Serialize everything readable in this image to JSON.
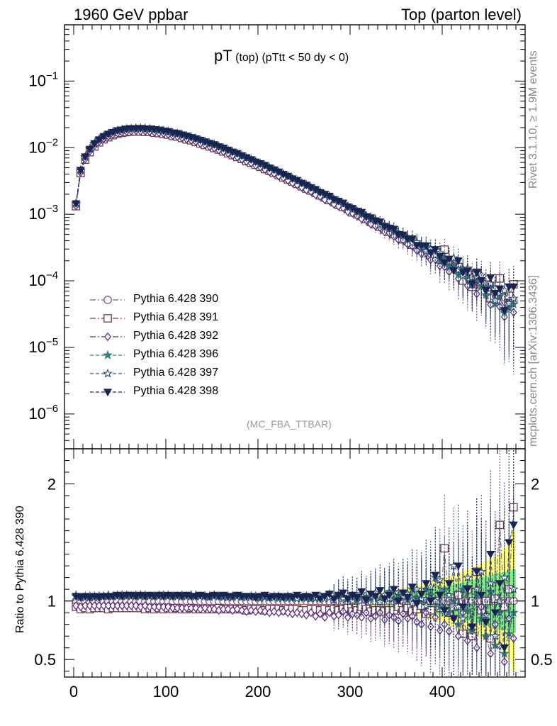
{
  "header": {
    "left": "1960 GeV ppbar",
    "right": "Top (parton level)"
  },
  "sidebar": {
    "rivet": "Rivet 3.1.10, ≥ 1.9M events",
    "mcplots": "mcplots.cern.ch [arXiv:1306.3436]"
  },
  "title": {
    "main": "pT",
    "sub": " (top)  (pTtt < 50 dy < 0)"
  },
  "analysis_tag": "(MC_FBA_TTBAR)",
  "ratio_ylabel": "Ratio to Pythia 6.428 390",
  "colors": {
    "s390": "#8b5a83",
    "s391": "#6e3b4e",
    "s392": "#5e2f86",
    "s396": "#3f7a7a",
    "s397": "#2f4f73",
    "s398": "#1a2450",
    "band_yellow": "#ffff80",
    "band_green": "#80f080"
  },
  "chart_data": {
    "type": "scatter",
    "xlabel": "",
    "ylabel": "",
    "xlim": [
      -10,
      490
    ],
    "ylim_main": [
      3e-07,
      0.7
    ],
    "yscale_main": "log",
    "ylim_ratio": [
      0.35,
      2.3
    ],
    "x_ticks": [
      "0",
      "100",
      "200",
      "300",
      "400"
    ],
    "y_ticks_main": [
      {
        "base": "10",
        "exp": "−1",
        "value": 0.1
      },
      {
        "base": "10",
        "exp": "−2",
        "value": 0.01
      },
      {
        "base": "10",
        "exp": "−3",
        "value": 0.001
      },
      {
        "base": "10",
        "exp": "−4",
        "value": 0.0001
      },
      {
        "base": "10",
        "exp": "−5",
        "value": 1e-05
      },
      {
        "base": "10",
        "exp": "−6",
        "value": 1e-06
      }
    ],
    "y_ticks_ratio": [
      "0.5",
      "1",
      "2"
    ],
    "x": [
      2.5,
      7.5,
      12.5,
      17.5,
      22.5,
      27.5,
      32.5,
      37.5,
      42.5,
      47.5,
      52.5,
      57.5,
      62.5,
      67.5,
      72.5,
      77.5,
      82.5,
      87.5,
      92.5,
      97.5,
      102.5,
      107.5,
      112.5,
      117.5,
      122.5,
      127.5,
      132.5,
      137.5,
      142.5,
      147.5,
      152.5,
      157.5,
      162.5,
      167.5,
      172.5,
      177.5,
      182.5,
      187.5,
      192.5,
      197.5,
      202.5,
      207.5,
      212.5,
      217.5,
      222.5,
      227.5,
      232.5,
      237.5,
      242.5,
      247.5,
      252.5,
      257.5,
      262.5,
      267.5,
      272.5,
      277.5,
      282.5,
      287.5,
      292.5,
      297.5,
      302.5,
      307.5,
      312.5,
      317.5,
      322.5,
      327.5,
      332.5,
      337.5,
      342.5,
      347.5,
      352.5,
      357.5,
      362.5,
      367.5,
      372.5,
      377.5,
      382.5,
      387.5,
      392.5,
      397.5,
      402.5,
      407.5,
      412.5,
      417.5,
      422.5,
      427.5,
      432.5,
      437.5,
      442.5,
      447.5,
      452.5,
      457.5,
      462.5,
      467.5,
      472.5,
      477.5
    ],
    "reference_series": "Pythia 6.428 390",
    "reference_values": [
      0.00139,
      0.00446,
      0.00703,
      0.00921,
      0.0111,
      0.0128,
      0.0142,
      0.0154,
      0.0164,
      0.0172,
      0.0178,
      0.0182,
      0.0185,
      0.0186,
      0.0186,
      0.0185,
      0.0183,
      0.018,
      0.0176,
      0.0172,
      0.0167,
      0.0161,
      0.0156,
      0.015,
      0.0143,
      0.0137,
      0.0131,
      0.0124,
      0.0118,
      0.0112,
      0.0106,
      0.00998,
      0.0094,
      0.00884,
      0.0083,
      0.00779,
      0.00729,
      0.00682,
      0.00638,
      0.00595,
      0.00555,
      0.00518,
      0.00482,
      0.00448,
      0.00416,
      0.00387,
      0.00359,
      0.00332,
      0.00308,
      0.00285,
      0.00264,
      0.00244,
      0.00225,
      0.00208,
      0.00192,
      0.00177,
      0.00163,
      0.0015,
      0.00138,
      0.00127,
      0.00117,
      0.00108,
      0.000991,
      0.000911,
      0.000837,
      0.000768,
      0.000705,
      0.000647,
      0.000593,
      0.000543,
      0.000498,
      0.000456,
      0.000417,
      0.000382,
      0.000349,
      0.000319,
      0.000292,
      0.000266,
      0.000243,
      0.000222,
      0.000203,
      0.000185,
      0.000169,
      0.000154,
      0.00014,
      0.000128,
      0.000116,
      0.000106,
      9.64e-05,
      8.77e-05,
      7.97e-05,
      7.24e-05,
      6.58e-05,
      5.98e-05,
      5.43e-05,
      4.93e-05
    ],
    "band_rel_error_green": [
      0.02,
      0.02,
      0.02,
      0.02,
      0.02,
      0.02,
      0.02,
      0.02,
      0.02,
      0.02,
      0.02,
      0.02,
      0.02,
      0.02,
      0.02,
      0.02,
      0.02,
      0.02,
      0.02,
      0.02,
      0.02,
      0.02,
      0.02,
      0.02,
      0.02,
      0.02,
      0.02,
      0.02,
      0.02,
      0.02,
      0.02,
      0.02,
      0.02,
      0.02,
      0.02,
      0.02,
      0.02,
      0.02,
      0.02,
      0.02,
      0.02,
      0.02,
      0.02,
      0.02,
      0.02,
      0.02,
      0.02,
      0.02,
      0.02,
      0.02,
      0.02,
      0.02,
      0.02,
      0.02,
      0.02,
      0.02,
      0.02,
      0.02,
      0.03,
      0.03,
      0.03,
      0.03,
      0.03,
      0.03,
      0.04,
      0.04,
      0.04,
      0.04,
      0.05,
      0.05,
      0.06,
      0.06,
      0.07,
      0.07,
      0.08,
      0.08,
      0.09,
      0.1,
      0.11,
      0.12,
      0.12,
      0.13,
      0.14,
      0.15,
      0.16,
      0.17,
      0.18,
      0.19,
      0.2,
      0.21,
      0.22,
      0.23,
      0.24,
      0.25,
      0.26,
      0.27
    ],
    "band_rel_error_yellow": [
      0.03,
      0.03,
      0.03,
      0.03,
      0.03,
      0.03,
      0.03,
      0.03,
      0.03,
      0.03,
      0.03,
      0.03,
      0.03,
      0.03,
      0.03,
      0.03,
      0.03,
      0.03,
      0.03,
      0.03,
      0.03,
      0.03,
      0.03,
      0.03,
      0.03,
      0.03,
      0.03,
      0.03,
      0.03,
      0.03,
      0.03,
      0.03,
      0.03,
      0.03,
      0.03,
      0.03,
      0.03,
      0.03,
      0.03,
      0.03,
      0.03,
      0.03,
      0.03,
      0.03,
      0.03,
      0.03,
      0.03,
      0.03,
      0.03,
      0.04,
      0.04,
      0.04,
      0.04,
      0.04,
      0.04,
      0.04,
      0.04,
      0.05,
      0.05,
      0.05,
      0.05,
      0.06,
      0.06,
      0.06,
      0.07,
      0.07,
      0.08,
      0.08,
      0.09,
      0.09,
      0.1,
      0.11,
      0.12,
      0.12,
      0.13,
      0.14,
      0.15,
      0.16,
      0.17,
      0.18,
      0.2,
      0.21,
      0.22,
      0.24,
      0.25,
      0.27,
      0.28,
      0.3,
      0.32,
      0.34,
      0.36,
      0.38,
      0.4,
      0.45,
      0.5,
      0.6
    ],
    "series": [
      {
        "name": "Pythia 6.428 390",
        "marker": "circle-open",
        "dash": "dashdot",
        "color_key": "s390",
        "ratio": [
          1.0,
          1.0,
          1.0,
          1.0,
          1.0,
          1.0,
          1.0,
          1.0,
          1.0,
          1.0,
          1.0,
          1.0,
          1.0,
          1.0,
          1.0,
          1.0,
          1.0,
          1.0,
          1.0,
          1.0,
          1.0,
          1.0,
          1.0,
          1.0,
          1.0,
          1.0,
          1.0,
          1.0,
          1.0,
          1.0,
          1.0,
          1.0,
          1.0,
          1.0,
          1.0,
          1.0,
          1.0,
          1.0,
          1.0,
          1.0,
          1.0,
          1.0,
          1.0,
          1.0,
          1.0,
          1.0,
          1.0,
          1.0,
          1.0,
          1.0,
          1.0,
          1.0,
          1.0,
          1.0,
          1.0,
          1.0,
          1.0,
          1.0,
          1.0,
          1.0,
          1.0,
          1.0,
          1.0,
          1.0,
          1.0,
          1.0,
          1.0,
          1.0,
          1.0,
          1.0,
          1.0,
          1.0,
          1.0,
          1.0,
          1.0,
          1.0,
          1.0,
          1.0,
          1.0,
          1.0,
          1.0,
          1.0,
          1.0,
          1.0,
          1.0,
          1.0,
          1.0,
          1.0,
          1.0,
          1.0,
          1.0,
          1.0,
          1.0,
          1.0,
          1.0,
          1.0
        ]
      },
      {
        "name": "Pythia 6.428 391",
        "marker": "square-open",
        "dash": "dashdot",
        "color_key": "s391",
        "ratio": [
          0.95,
          0.93,
          0.94,
          0.93,
          0.94,
          0.94,
          0.94,
          0.93,
          0.94,
          0.94,
          0.94,
          0.94,
          0.94,
          0.94,
          0.94,
          0.93,
          0.94,
          0.93,
          0.94,
          0.93,
          0.94,
          0.93,
          0.94,
          0.93,
          0.93,
          0.94,
          0.93,
          0.93,
          0.93,
          0.93,
          0.93,
          0.94,
          0.93,
          0.93,
          0.93,
          0.93,
          0.93,
          0.92,
          0.93,
          0.93,
          0.93,
          0.92,
          0.93,
          0.93,
          0.93,
          0.92,
          0.93,
          0.93,
          0.93,
          0.92,
          0.92,
          0.93,
          0.93,
          0.92,
          0.93,
          0.92,
          0.93,
          0.92,
          0.93,
          0.94,
          0.91,
          0.92,
          0.95,
          0.93,
          0.91,
          0.92,
          0.92,
          0.91,
          0.92,
          0.92,
          0.95,
          0.92,
          0.94,
          0.91,
          0.93,
          0.96,
          0.89,
          0.92,
          1.0,
          0.94,
          1.45,
          0.9,
          0.95,
          1.05,
          0.72,
          1.1,
          0.7,
          1.25,
          0.92,
          1.0,
          0.68,
          1.02,
          1.65,
          0.95,
          1.1,
          1.8
        ]
      },
      {
        "name": "Pythia 6.428 392",
        "marker": "diamond-open",
        "dash": "dashdot",
        "color_key": "s392",
        "ratio": [
          0.96,
          0.95,
          0.96,
          0.96,
          0.96,
          0.96,
          0.96,
          0.96,
          0.96,
          0.96,
          0.96,
          0.96,
          0.96,
          0.96,
          0.95,
          0.96,
          0.95,
          0.95,
          0.95,
          0.95,
          0.95,
          0.94,
          0.94,
          0.94,
          0.94,
          0.94,
          0.94,
          0.93,
          0.94,
          0.93,
          0.93,
          0.92,
          0.93,
          0.93,
          0.92,
          0.93,
          0.92,
          0.91,
          0.92,
          0.91,
          0.92,
          0.91,
          0.9,
          0.91,
          0.9,
          0.91,
          0.9,
          0.89,
          0.9,
          0.89,
          0.88,
          0.9,
          0.87,
          0.89,
          0.86,
          0.9,
          0.87,
          0.88,
          0.91,
          0.86,
          0.89,
          0.88,
          0.86,
          0.9,
          0.85,
          0.87,
          0.9,
          0.84,
          0.88,
          0.86,
          0.83,
          0.89,
          0.85,
          0.87,
          0.82,
          0.8,
          0.9,
          0.78,
          0.86,
          0.75,
          0.8,
          0.74,
          0.85,
          0.7,
          0.9,
          0.66,
          0.75,
          0.6,
          0.95,
          0.7,
          0.55,
          0.8,
          0.62,
          0.48,
          0.85,
          0.68
        ]
      },
      {
        "name": "Pythia 6.428 396",
        "marker": "star-filled",
        "dash": "dashed",
        "color_key": "s396",
        "ratio": [
          1.05,
          1.03,
          1.04,
          1.03,
          1.04,
          1.04,
          1.04,
          1.05,
          1.04,
          1.05,
          1.04,
          1.05,
          1.04,
          1.05,
          1.04,
          1.05,
          1.04,
          1.04,
          1.05,
          1.04,
          1.05,
          1.04,
          1.04,
          1.05,
          1.04,
          1.04,
          1.05,
          1.04,
          1.04,
          1.03,
          1.04,
          1.04,
          1.03,
          1.04,
          1.03,
          1.04,
          1.03,
          1.03,
          1.04,
          1.03,
          1.02,
          1.03,
          1.03,
          1.04,
          1.02,
          1.03,
          1.02,
          1.03,
          1.02,
          1.03,
          1.02,
          1.03,
          1.02,
          1.03,
          1.02,
          1.06,
          1.01,
          1.04,
          1.03,
          1.02,
          1.05,
          1.0,
          1.04,
          1.03,
          1.02,
          1.06,
          1.0,
          1.04,
          1.08,
          1.02,
          1.05,
          1.07,
          1.01,
          1.1,
          1.03,
          1.0,
          1.1,
          1.05,
          1.2,
          0.95,
          1.1,
          0.9,
          1.0,
          0.8,
          1.1,
          0.92,
          0.75,
          1.05,
          0.85,
          0.7,
          1.08,
          0.62,
          0.9,
          0.55,
          0.72,
          0.9
        ]
      },
      {
        "name": "Pythia 6.428 397",
        "marker": "star-open",
        "dash": "dashed",
        "color_key": "s397",
        "ratio": [
          1.04,
          1.03,
          1.03,
          1.04,
          1.03,
          1.04,
          1.04,
          1.04,
          1.04,
          1.04,
          1.05,
          1.04,
          1.04,
          1.04,
          1.05,
          1.04,
          1.04,
          1.04,
          1.04,
          1.05,
          1.04,
          1.04,
          1.04,
          1.04,
          1.04,
          1.05,
          1.04,
          1.04,
          1.04,
          1.04,
          1.05,
          1.04,
          1.04,
          1.03,
          1.04,
          1.04,
          1.04,
          1.03,
          1.04,
          1.04,
          1.03,
          1.04,
          1.03,
          1.03,
          1.04,
          1.03,
          1.04,
          1.03,
          1.02,
          1.03,
          1.04,
          1.02,
          1.03,
          1.04,
          1.02,
          1.03,
          1.01,
          1.05,
          1.02,
          1.04,
          1.0,
          1.03,
          1.06,
          1.01,
          1.04,
          1.07,
          0.99,
          1.05,
          1.02,
          1.08,
          1.0,
          1.04,
          1.06,
          0.98,
          1.1,
          1.02,
          0.96,
          1.12,
          1.0,
          1.18,
          0.9,
          1.05,
          1.3,
          0.95,
          0.85,
          1.2,
          0.78,
          1.1,
          1.25,
          0.88,
          1.15,
          0.7,
          1.0,
          1.2,
          0.85,
          1.1
        ]
      },
      {
        "name": "Pythia 6.428 398",
        "marker": "triangle-down-filled",
        "dash": "dashed",
        "color_key": "s398",
        "ratio": [
          1.04,
          1.03,
          1.04,
          1.03,
          1.04,
          1.03,
          1.04,
          1.04,
          1.04,
          1.05,
          1.04,
          1.05,
          1.05,
          1.04,
          1.05,
          1.04,
          1.05,
          1.04,
          1.05,
          1.04,
          1.05,
          1.04,
          1.05,
          1.04,
          1.05,
          1.04,
          1.04,
          1.05,
          1.04,
          1.04,
          1.05,
          1.04,
          1.05,
          1.04,
          1.04,
          1.05,
          1.04,
          1.04,
          1.04,
          1.03,
          1.04,
          1.05,
          1.03,
          1.04,
          1.04,
          1.03,
          1.04,
          1.03,
          1.05,
          1.03,
          1.04,
          1.03,
          1.05,
          1.02,
          1.04,
          1.06,
          1.02,
          1.05,
          1.07,
          1.02,
          1.05,
          1.03,
          1.08,
          1.01,
          1.06,
          1.04,
          1.09,
          1.02,
          1.05,
          1.1,
          1.0,
          1.07,
          1.03,
          1.12,
          0.98,
          1.06,
          1.15,
          1.0,
          1.22,
          1.05,
          0.92,
          1.15,
          0.85,
          1.3,
          0.95,
          1.1,
          0.78,
          1.25,
          1.05,
          0.82,
          1.4,
          0.9,
          1.15,
          0.6,
          1.5,
          1.65
        ]
      }
    ]
  }
}
